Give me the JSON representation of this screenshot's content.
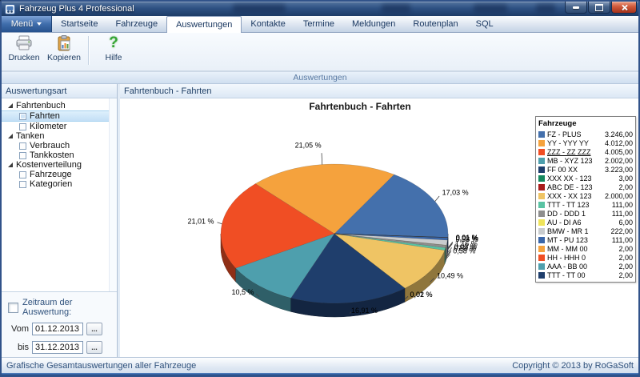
{
  "window": {
    "title": "Fahrzeug Plus 4 Professional"
  },
  "tabs": {
    "menu_label": "Menü",
    "items": [
      "Startseite",
      "Fahrzeuge",
      "Auswertungen",
      "Kontakte",
      "Termine",
      "Meldungen",
      "Routenplan",
      "SQL"
    ],
    "active": "Auswertungen"
  },
  "toolbar": {
    "print_label": "Drucken",
    "copy_label": "Kopieren",
    "help_label": "Hilfe"
  },
  "caption": "Auswertungen",
  "sidebar": {
    "header": "Auswertungsart",
    "tree": [
      {
        "label": "Fahrtenbuch",
        "type": "group"
      },
      {
        "label": "Fahrten",
        "type": "item",
        "selected": true
      },
      {
        "label": "Kilometer",
        "type": "item"
      },
      {
        "label": "Tanken",
        "type": "group"
      },
      {
        "label": "Verbrauch",
        "type": "item"
      },
      {
        "label": "Tankkosten",
        "type": "item"
      },
      {
        "label": "Kostenverteilung",
        "type": "group"
      },
      {
        "label": "Fahrzeuge",
        "type": "item"
      },
      {
        "label": "Kategorien",
        "type": "item"
      }
    ],
    "period": {
      "checkbox_label": "Zeitraum der Auswertung:",
      "checkbox_checked": false,
      "from_label": "Vom",
      "from_value": "01.12.2013",
      "to_label": "bis",
      "to_value": "31.12.2013",
      "browse_label": "..."
    }
  },
  "main": {
    "header": "Fahrtenbuch - Fahrten"
  },
  "chart_data": {
    "type": "pie",
    "is_3d": true,
    "title": "Fahrtenbuch - Fahrten",
    "legend_title": "Fahrzeuge",
    "legend_position": "right",
    "start_angle": -3,
    "series": [
      {
        "name": "FZ - PLUS",
        "value": 3246,
        "value_label": "3.246,00",
        "percent_label": "17,03 %",
        "color": "#4470AC"
      },
      {
        "name": "YY - YYY YY",
        "value": 4012,
        "value_label": "4.012,00",
        "percent_label": "21,05 %",
        "color": "#F5A23D"
      },
      {
        "name": "ZZZ - ZZ ZZZ",
        "value": 4005,
        "value_label": "4.005,00",
        "percent_label": "21,01 %",
        "color": "#F04E24",
        "underline": true
      },
      {
        "name": "MB - XYZ 123",
        "value": 2002,
        "value_label": "2.002,00",
        "percent_label": "10,5 %",
        "color": "#4E9FAD"
      },
      {
        "name": "FF 00 XX",
        "value": 3223,
        "value_label": "3.223,00",
        "percent_label": "16,91 %",
        "color": "#1F3E6C"
      },
      {
        "name": "XXX XX - 123",
        "value": 3,
        "value_label": "3,00",
        "percent_label": "0,02 %",
        "color": "#15885E"
      },
      {
        "name": "ABC DE - 123",
        "value": 2,
        "value_label": "2,00",
        "percent_label": "0,01 %",
        "color": "#A91B1B"
      },
      {
        "name": "XXX - XX 123",
        "value": 2000,
        "value_label": "2.000,00",
        "percent_label": "10,49 %",
        "color": "#EFC464"
      },
      {
        "name": "TTT - TT 123",
        "value": 111,
        "value_label": "111,00",
        "percent_label": "0,58 %",
        "color": "#59C3A3"
      },
      {
        "name": "DD - DDD 1",
        "value": 111,
        "value_label": "111,00",
        "percent_label": "0,58 %",
        "color": "#8E8E8E"
      },
      {
        "name": "AU - DI A6",
        "value": 6,
        "value_label": "6,00",
        "percent_label": "0,03 %",
        "color": "#EFE45B"
      },
      {
        "name": "BMW - MR 1",
        "value": 222,
        "value_label": "222,00",
        "percent_label": "1,16 %",
        "color": "#C9CCCE"
      },
      {
        "name": "MT - PU 123",
        "value": 111,
        "value_label": "111,00",
        "percent_label": "0,58 %",
        "color": "#3A66A8"
      },
      {
        "name": "MM - MM 00",
        "value": 2,
        "value_label": "2,00",
        "percent_label": "0,01 %",
        "color": "#F5A23D"
      },
      {
        "name": "HH - HHH 0",
        "value": 2,
        "value_label": "2,00",
        "percent_label": "0,01 %",
        "color": "#F04E24"
      },
      {
        "name": "AAA - BB 00",
        "value": 2,
        "value_label": "2,00",
        "percent_label": "0,01 %",
        "color": "#4E9FAD"
      },
      {
        "name": "TTT - TT 00",
        "value": 2,
        "value_label": "2,00",
        "percent_label": "0,01 %",
        "color": "#1F3E6C"
      }
    ]
  },
  "statusbar": {
    "left": "Grafische Gesamtauswertungen aller Fahrzeuge",
    "right": "Copyright © 2013 by RoGaSoft"
  }
}
